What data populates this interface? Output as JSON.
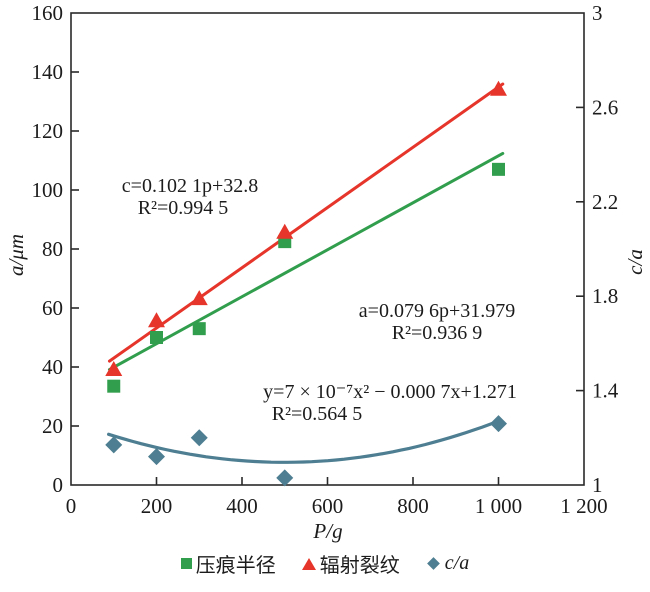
{
  "chart_data": {
    "type": "scatter",
    "x_axis": {
      "title": "P/g",
      "range": [
        0,
        1200
      ],
      "ticks": [
        0,
        200,
        400,
        600,
        800,
        1000,
        1200
      ],
      "tick_labels": [
        "0",
        "200",
        "400",
        "600",
        "800",
        "1 000",
        "1 200"
      ]
    },
    "left_axis": {
      "title": "a/μm",
      "range": [
        0,
        160
      ],
      "ticks": [
        0,
        20,
        40,
        60,
        80,
        100,
        120,
        140,
        160
      ],
      "tick_labels": [
        "0",
        "20",
        "40",
        "60",
        "80",
        "100",
        "120",
        "140",
        "160"
      ]
    },
    "right_axis": {
      "title": "c/a",
      "range": [
        1,
        3
      ],
      "ticks": [
        1,
        1.4,
        1.8,
        2.2,
        2.6,
        3
      ],
      "tick_labels": [
        "1",
        "1.4",
        "1.8",
        "2.2",
        "2.6",
        "3"
      ]
    },
    "grid": false,
    "legend_position": "bottom",
    "x": [
      100,
      200,
      300,
      500,
      1000
    ],
    "series": [
      {
        "name": "压痕半径",
        "axis": "left",
        "marker": "square",
        "color": "#319e4d",
        "values": [
          33.5,
          50,
          53,
          82.5,
          107
        ],
        "fit": {
          "type": "linear",
          "slope": 0.0796,
          "intercept": 31.979,
          "x_range": [
            90,
            1010
          ],
          "label": "a=0.079 6p+31.979",
          "r2_label": "R²=0.936 9"
        }
      },
      {
        "name": "辐射裂纹",
        "axis": "left",
        "marker": "triangle",
        "color": "#e6352a",
        "values": [
          39,
          55.5,
          63,
          85.5,
          134
        ],
        "fit": {
          "type": "linear",
          "slope": 0.1021,
          "intercept": 32.8,
          "x_range": [
            90,
            1010
          ],
          "label": "c=0.102 1p+32.8",
          "r2_label": "R²=0.994 5"
        }
      },
      {
        "name": "c/a",
        "axis": "right",
        "marker": "diamond",
        "color": "#4d7e91",
        "values": [
          1.17,
          1.12,
          1.2,
          1.03,
          1.26
        ],
        "fit": {
          "type": "quadratic",
          "a": 7e-07,
          "b": -0.0007,
          "c": 1.271,
          "x_range": [
            88,
            1000
          ],
          "label": "y=7 × 10⁻⁷x² − 0.000 7x+1.271",
          "r2_label": "R²=0.564 5"
        }
      }
    ]
  }
}
